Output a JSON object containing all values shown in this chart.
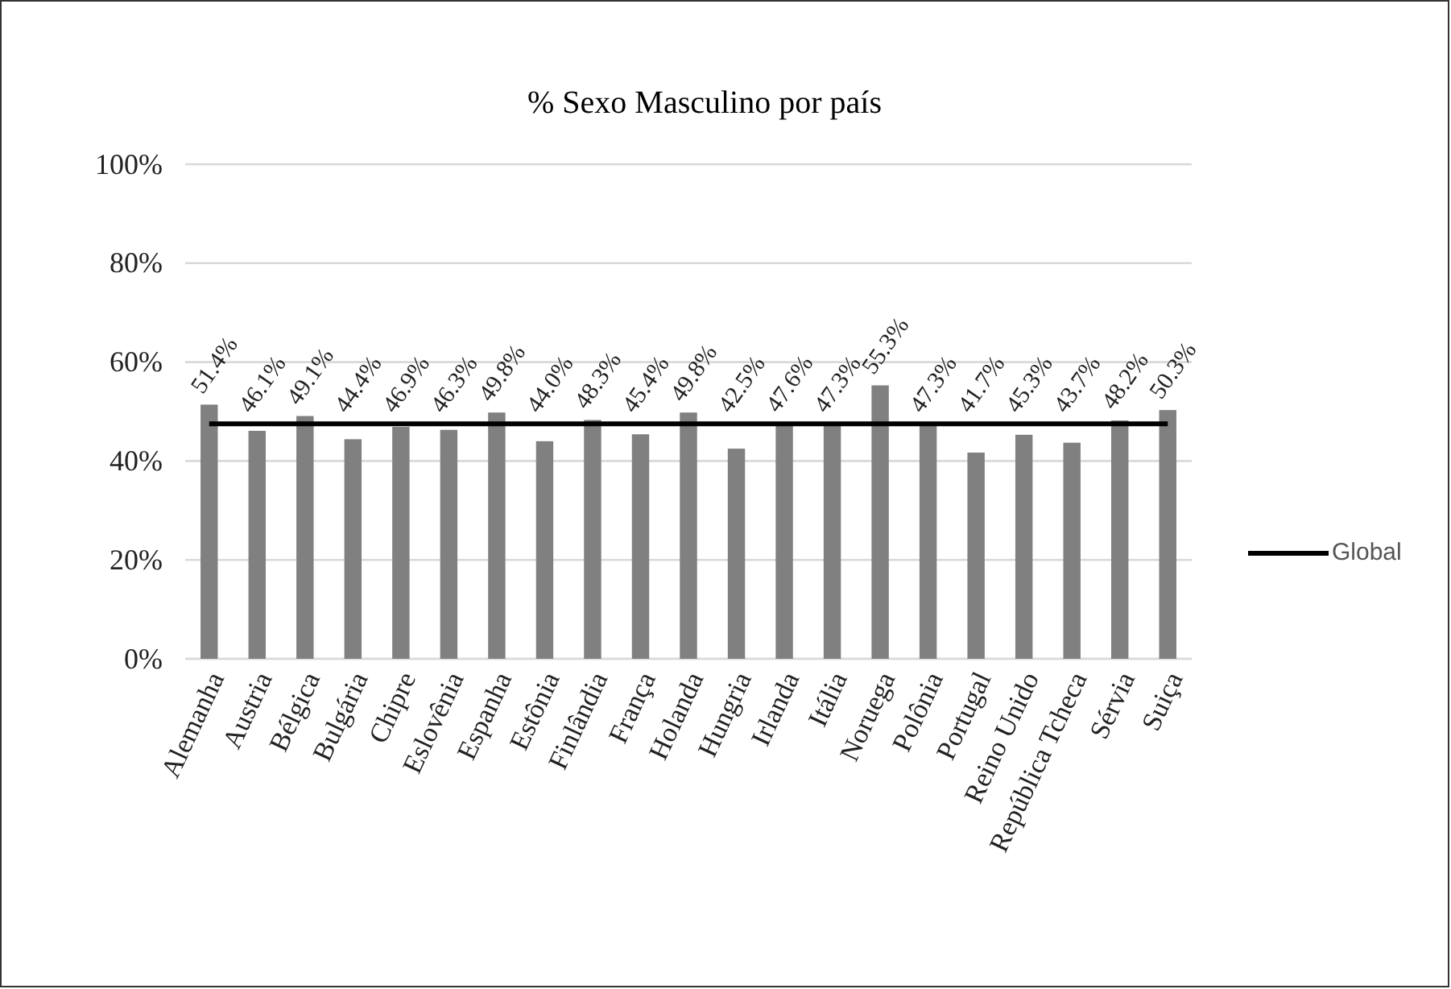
{
  "chart_data": {
    "type": "bar",
    "title": "% Sexo Masculino por país",
    "categories": [
      "Alemanha",
      "Austria",
      "Bélgica",
      "Bulgária",
      "Chipre",
      "Eslovênia",
      "Espanha",
      "Estônia",
      "Finlândia",
      "França",
      "Holanda",
      "Hungria",
      "Irlanda",
      "Itália",
      "Noruega",
      "Polônia",
      "Portugal",
      "Reino Unido",
      "República Tcheca",
      "Sérvia",
      "Suiça"
    ],
    "series": [
      {
        "color": "#808080",
        "values": [
          51.4,
          46.1,
          49.1,
          44.4,
          46.9,
          46.3,
          49.8,
          44.0,
          48.3,
          45.4,
          49.8,
          42.5,
          47.6,
          47.3,
          55.3,
          47.3,
          41.7,
          45.3,
          43.7,
          48.2,
          50.3
        ],
        "value_labels": [
          "51.4%",
          "46.1%",
          "49.1%",
          "44.4%",
          "46.9%",
          "46.3%",
          "49.8%",
          "44.0%",
          "48.3%",
          "45.4%",
          "49.8%",
          "42.5%",
          "47.6%",
          "47.3%",
          "55.3%",
          "47.3%",
          "41.7%",
          "45.3%",
          "43.7%",
          "48.2%",
          "50.3%"
        ]
      },
      {
        "type": "line",
        "name": "Global",
        "color": "#000000",
        "values": [
          47.5,
          47.5,
          47.5,
          47.5,
          47.5,
          47.5,
          47.5,
          47.5,
          47.5,
          47.5,
          47.5,
          47.5,
          47.5,
          47.5,
          47.5,
          47.5,
          47.5,
          47.5,
          47.5,
          47.5,
          47.5
        ]
      }
    ],
    "ylim": [
      0,
      100
    ],
    "yticks": [
      {
        "value": 0,
        "label": "0%"
      },
      {
        "value": 20,
        "label": "20%"
      },
      {
        "value": 40,
        "label": "40%"
      },
      {
        "value": 60,
        "label": "60%"
      },
      {
        "value": 80,
        "label": "80%"
      },
      {
        "value": 100,
        "label": "100%"
      }
    ],
    "grid": "y",
    "legend": "right"
  }
}
